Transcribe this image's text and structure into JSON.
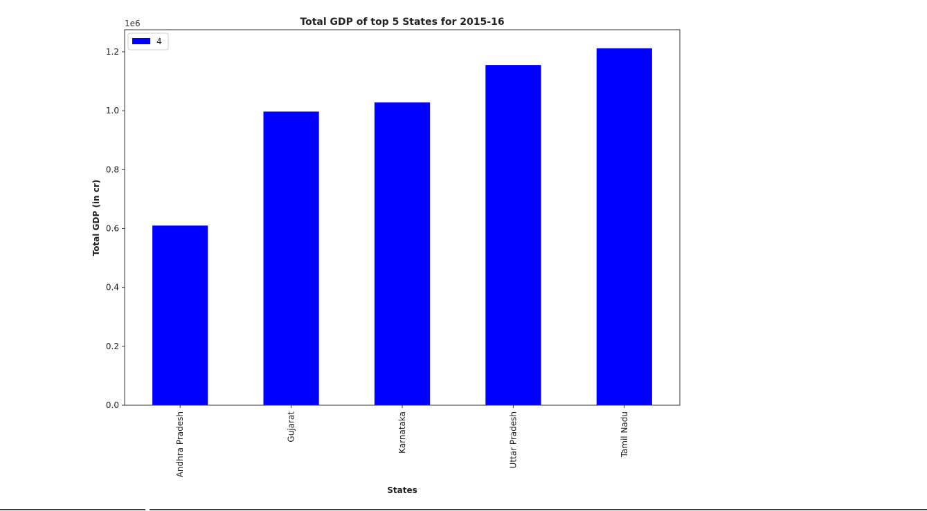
{
  "chart_data": {
    "type": "bar",
    "title": "Total GDP of top 5 States for 2015-16",
    "xlabel": "States",
    "ylabel": "Total GDP (in cr)",
    "offset_label": "1e6",
    "categories": [
      "Andhra Pradesh",
      "Gujarat",
      "Karnataka",
      "Uttar Pradesh",
      "Tamil Nadu"
    ],
    "series": [
      {
        "name": "4",
        "color": "#0000ff",
        "values": [
          610000,
          997000,
          1028000,
          1155000,
          1212000
        ]
      }
    ],
    "ylim": [
      0,
      1275000
    ],
    "yticks": [
      0,
      200000,
      400000,
      600000,
      800000,
      1000000,
      1200000
    ],
    "ytick_labels": [
      "0.0",
      "0.2",
      "0.4",
      "0.6",
      "0.8",
      "1.0",
      "1.2"
    ],
    "grid": false,
    "legend_position": "top-left"
  }
}
